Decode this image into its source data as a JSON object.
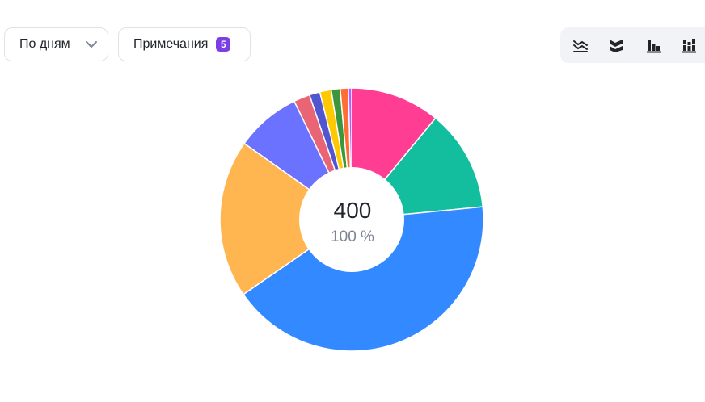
{
  "controls": {
    "period_label": "По дням",
    "notes_label": "Примечания",
    "notes_count": "5"
  },
  "toolbar": {
    "icons": [
      "area-chart-icon",
      "stacked-area-icon",
      "bar-chart-icon",
      "stacked-bar-icon"
    ]
  },
  "chart_data": {
    "type": "pie",
    "donut": true,
    "center_value": "400",
    "center_percent": "100 %",
    "slices": [
      {
        "value": 11.0,
        "color": "#ff3d92"
      },
      {
        "value": 12.5,
        "color": "#12be9e"
      },
      {
        "value": 42.0,
        "color": "#3389ff"
      },
      {
        "value": 19.5,
        "color": "#ffb651"
      },
      {
        "value": 8.0,
        "color": "#6b72ff"
      },
      {
        "value": 2.0,
        "color": "#e96575"
      },
      {
        "value": 1.3,
        "color": "#5056cf"
      },
      {
        "value": 1.4,
        "color": "#ffc901"
      },
      {
        "value": 1.1,
        "color": "#3b963c"
      },
      {
        "value": 1.0,
        "color": "#ff6e32"
      },
      {
        "value": 0.4,
        "color": "#c058ff"
      }
    ]
  }
}
